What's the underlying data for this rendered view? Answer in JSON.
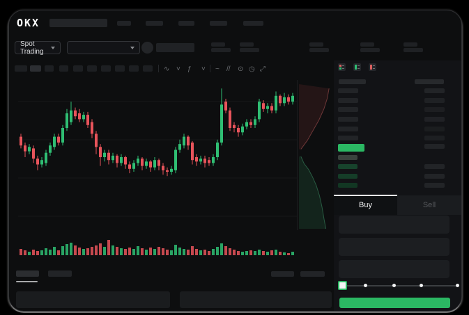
{
  "colors": {
    "green": "#2fbe73",
    "red": "#e8545b",
    "accent_green": "#2bb863",
    "skeleton": "#212326"
  },
  "brand": {
    "logo": "OKX"
  },
  "market_selector": {
    "label": "Spot Trading"
  },
  "pair_selector": {
    "selected": ""
  },
  "top_nav": {
    "nav_item_count": 5
  },
  "ticker_stats": {
    "pair_count": 5
  },
  "chart_toolbar": {
    "interval_button_count": 10,
    "active_interval_index": 1,
    "icons": [
      {
        "name": "zigzag-chart-type-icon",
        "glyph": "∿"
      },
      {
        "name": "caret-down-icon",
        "glyph": "˅"
      },
      {
        "name": "fx-indicator-icon",
        "glyph": "ƒ"
      },
      {
        "name": "caret-down-icon",
        "glyph": "˅"
      },
      {
        "name": "line-tool-icon",
        "glyph": "~"
      },
      {
        "name": "draw-tool-icon",
        "glyph": "//"
      },
      {
        "name": "camera-icon",
        "glyph": "⊙"
      },
      {
        "name": "history-icon",
        "glyph": "◷"
      },
      {
        "name": "fullscreen-icon",
        "glyph": "⤢"
      }
    ]
  },
  "chart_data": {
    "type": "candlestick",
    "title": "",
    "note": "no axis labels visible; OHLC estimated on normalized 0-100 price scale, volume on 0-25 scale",
    "ylim": [
      0,
      100
    ],
    "grid": true,
    "candles": [
      [
        64,
        66,
        56,
        58
      ],
      [
        58,
        60,
        50,
        54
      ],
      [
        54,
        59,
        52,
        57
      ],
      [
        56,
        58,
        46,
        49
      ],
      [
        49,
        51,
        41,
        45
      ],
      [
        45,
        50,
        43,
        48
      ],
      [
        46,
        55,
        44,
        53
      ],
      [
        53,
        60,
        51,
        58
      ],
      [
        57,
        66,
        55,
        64
      ],
      [
        64,
        66,
        58,
        60
      ],
      [
        60,
        72,
        58,
        70
      ],
      [
        70,
        83,
        68,
        80
      ],
      [
        74,
        88,
        72,
        82
      ],
      [
        82,
        84,
        76,
        78
      ],
      [
        80,
        83,
        74,
        76
      ],
      [
        76,
        81,
        74,
        79
      ],
      [
        79,
        81,
        70,
        72
      ],
      [
        74,
        76,
        63,
        66
      ],
      [
        66,
        68,
        52,
        57
      ],
      [
        57,
        59,
        44,
        50
      ],
      [
        50,
        55,
        47,
        53
      ],
      [
        53,
        55,
        45,
        48
      ],
      [
        48,
        53,
        46,
        51
      ],
      [
        51,
        52,
        43,
        46
      ],
      [
        46,
        52,
        44,
        50
      ],
      [
        50,
        51,
        42,
        45
      ],
      [
        45,
        47,
        39,
        42
      ],
      [
        42,
        48,
        40,
        46
      ],
      [
        46,
        51,
        44,
        49
      ],
      [
        49,
        50,
        41,
        44
      ],
      [
        44,
        49,
        42,
        47
      ],
      [
        47,
        48,
        40,
        43
      ],
      [
        43,
        50,
        41,
        48
      ],
      [
        48,
        49,
        41,
        44
      ],
      [
        44,
        46,
        38,
        41
      ],
      [
        41,
        43,
        37,
        40
      ],
      [
        40,
        44,
        38,
        42
      ],
      [
        41,
        57,
        39,
        55
      ],
      [
        55,
        62,
        53,
        59
      ],
      [
        58,
        66,
        56,
        64
      ],
      [
        64,
        65,
        55,
        58
      ],
      [
        60,
        61,
        45,
        48
      ],
      [
        50,
        52,
        44,
        47
      ],
      [
        47,
        51,
        45,
        49
      ],
      [
        49,
        51,
        43,
        46
      ],
      [
        48,
        50,
        44,
        46
      ],
      [
        46,
        52,
        44,
        50
      ],
      [
        50,
        62,
        48,
        60
      ],
      [
        60,
        97,
        58,
        86
      ],
      [
        88,
        90,
        80,
        82
      ],
      [
        82,
        84,
        68,
        70
      ],
      [
        72,
        74,
        67,
        70
      ],
      [
        70,
        72,
        64,
        67
      ],
      [
        67,
        73,
        65,
        71
      ],
      [
        71,
        76,
        69,
        74
      ],
      [
        74,
        76,
        70,
        72
      ],
      [
        72,
        78,
        70,
        76
      ],
      [
        76,
        90,
        74,
        88
      ],
      [
        87,
        89,
        81,
        83
      ],
      [
        83,
        87,
        80,
        85
      ],
      [
        85,
        87,
        80,
        82
      ],
      [
        82,
        95,
        80,
        92
      ],
      [
        92,
        93,
        85,
        87
      ],
      [
        87,
        94,
        85,
        91
      ],
      [
        91,
        93,
        86,
        88
      ],
      [
        88,
        94,
        86,
        92
      ]
    ],
    "volumes": [
      9,
      7,
      5,
      8,
      6,
      7,
      10,
      8,
      12,
      7,
      13,
      16,
      18,
      14,
      11,
      9,
      10,
      12,
      14,
      17,
      12,
      22,
      14,
      12,
      10,
      9,
      11,
      9,
      13,
      10,
      8,
      11,
      9,
      12,
      10,
      8,
      7,
      15,
      11,
      9,
      8,
      13,
      9,
      7,
      8,
      6,
      9,
      12,
      17,
      13,
      10,
      8,
      6,
      5,
      6,
      7,
      6,
      8,
      6,
      5,
      7,
      8,
      5,
      4,
      3,
      5
    ]
  },
  "depth_chart": {
    "type": "area",
    "asks_curve": [
      [
        0.94,
        0.03
      ],
      [
        0.88,
        0.1
      ],
      [
        0.78,
        0.17
      ],
      [
        0.62,
        0.25
      ],
      [
        0.44,
        0.32
      ],
      [
        0.26,
        0.39
      ],
      [
        0.06,
        0.45
      ]
    ],
    "bids_curve": [
      [
        0.06,
        0.5
      ],
      [
        0.16,
        0.55
      ],
      [
        0.3,
        0.59
      ],
      [
        0.42,
        0.64
      ],
      [
        0.54,
        0.7
      ],
      [
        0.64,
        0.77
      ],
      [
        0.72,
        0.85
      ],
      [
        0.78,
        0.93
      ],
      [
        0.84,
        1.0
      ]
    ]
  },
  "orderbook": {
    "view_icons": [
      "book-all-icon",
      "book-bids-icon",
      "book-asks-icon"
    ],
    "ask_row_count": 6,
    "bid_row_count": 4,
    "has_last_price_bar": true
  },
  "trade_panel": {
    "tabs": [
      {
        "label": "Buy",
        "active": true
      },
      {
        "label": "Sell",
        "active": false
      }
    ],
    "field_count": 3,
    "slider": {
      "stop_count": 5,
      "selected_index": 0
    },
    "submit_label": ""
  },
  "bottom_section": {
    "tab_count": 2,
    "active_tab_index": 0,
    "right_block_count": 2,
    "panel_count": 2
  }
}
